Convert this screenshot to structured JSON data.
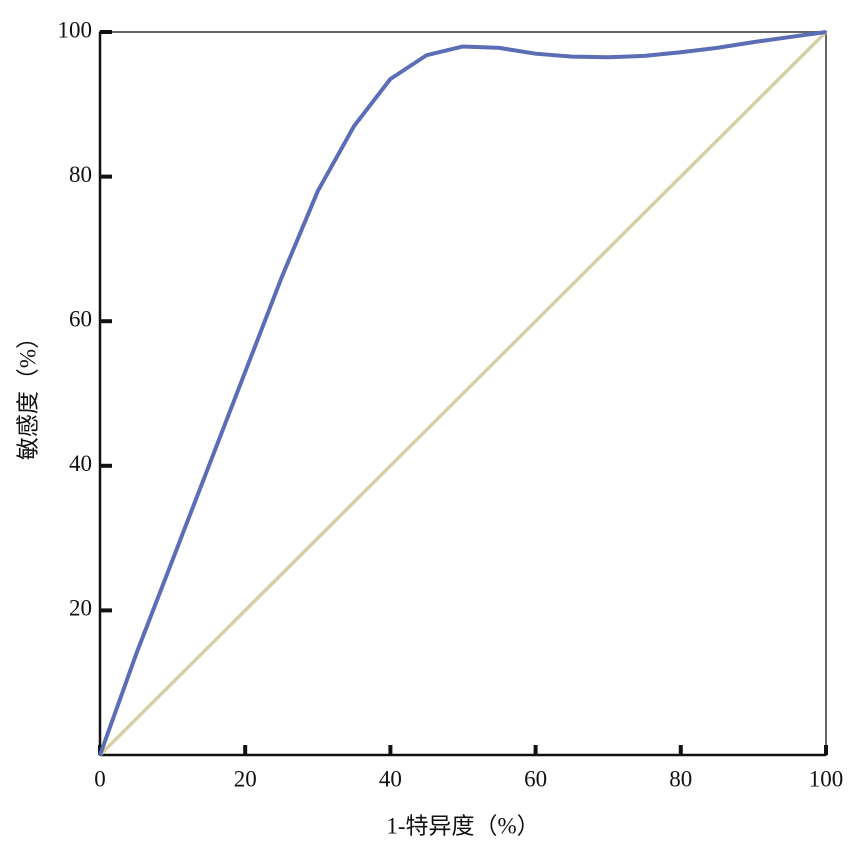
{
  "chart_data": {
    "type": "line",
    "x_label": "1-特异度（%）",
    "y_label": "敏感度（%）",
    "xlim": [
      0,
      100
    ],
    "ylim": [
      0,
      100
    ],
    "xticks": [
      0,
      20,
      40,
      60,
      80,
      100
    ],
    "yticks": [
      20,
      40,
      60,
      80,
      100
    ],
    "series": [
      {
        "color": "#5a6db5",
        "x": [
          0,
          5,
          10,
          15,
          20,
          25,
          30,
          35,
          40,
          45,
          50,
          55,
          60,
          65,
          70,
          75,
          80,
          85,
          90,
          95,
          100
        ],
        "values": [
          0,
          14,
          27,
          40,
          53,
          66,
          78,
          87,
          93.5,
          96.8,
          98,
          97.8,
          97,
          96.6,
          96.5,
          96.7,
          97.2,
          97.8,
          98.6,
          99.3,
          100
        ]
      },
      {
        "color": "#d6cfa6",
        "x": [
          0,
          100
        ],
        "values": [
          0,
          100
        ]
      }
    ]
  }
}
